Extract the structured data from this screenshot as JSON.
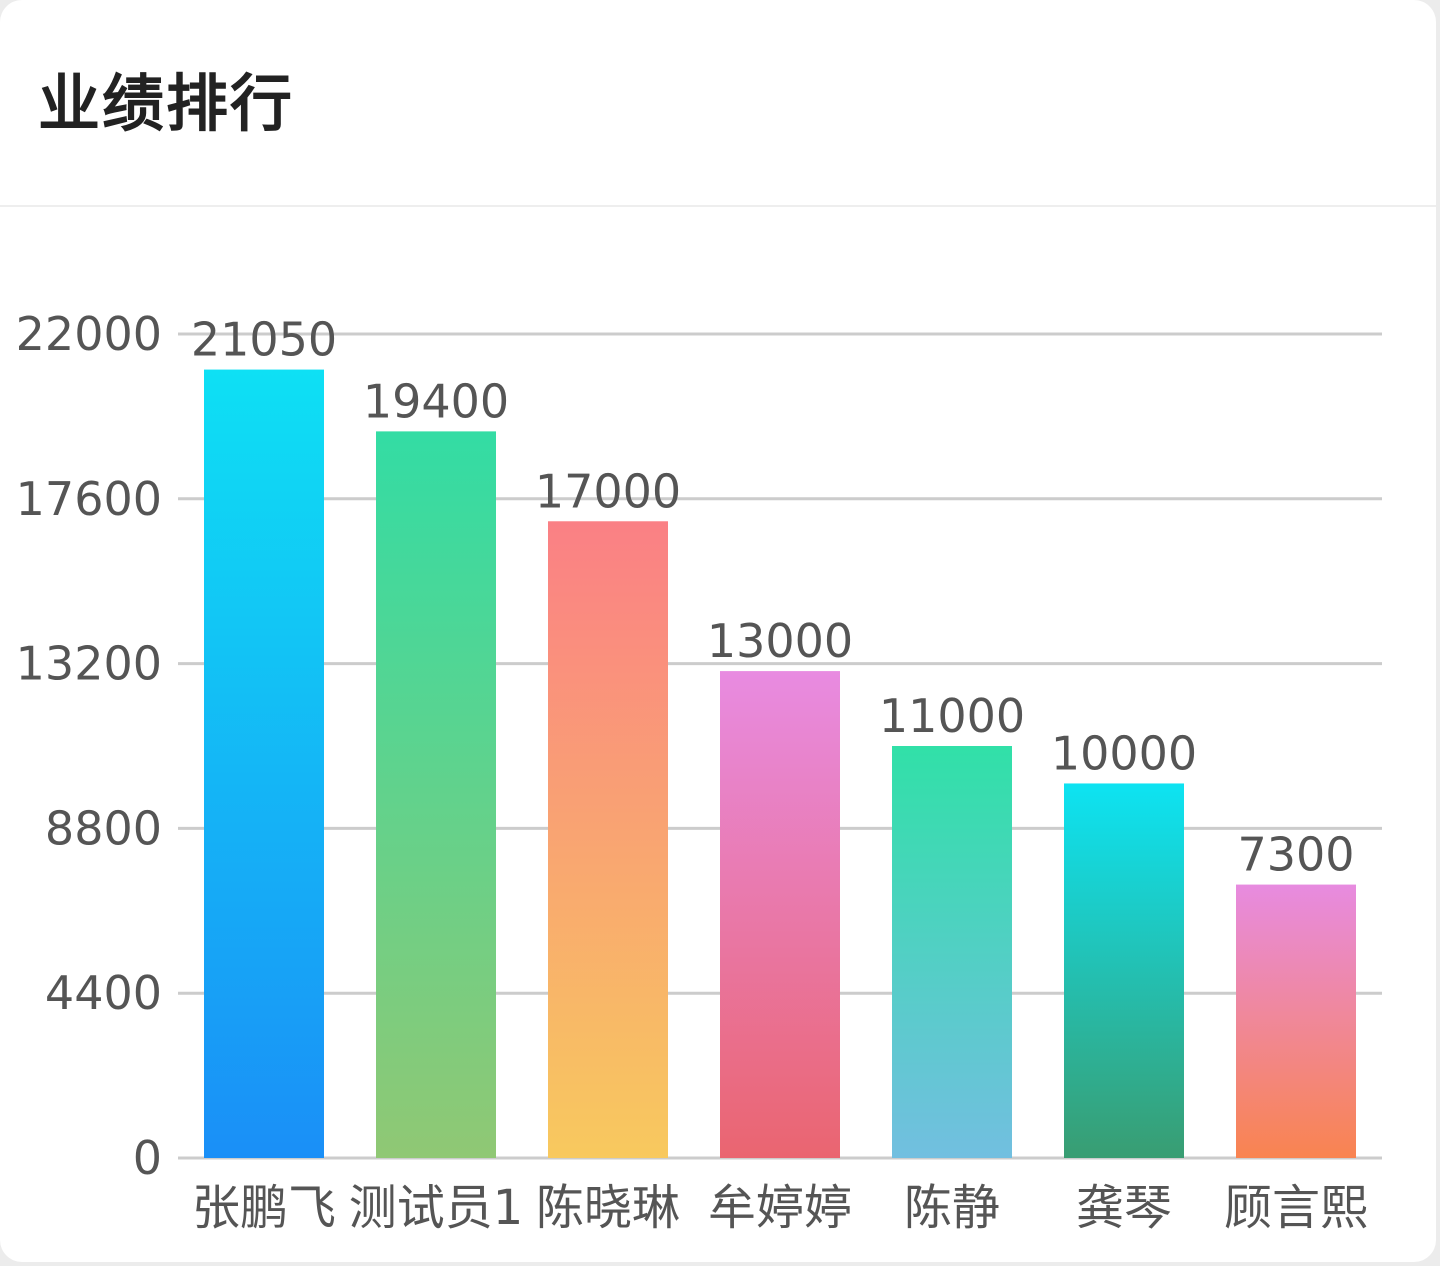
{
  "card": {
    "title": "业绩排行"
  },
  "chart_data": {
    "type": "bar",
    "title": "业绩排行",
    "xlabel": "",
    "ylabel": "",
    "categories": [
      "张鹏飞",
      "测试员1",
      "陈晓琳",
      "牟婷婷",
      "陈静",
      "龚琴",
      "顾言熙"
    ],
    "values": [
      21050,
      19400,
      17000,
      13000,
      11000,
      10000,
      7300
    ],
    "ylim": [
      0,
      22000
    ],
    "yticks": [
      0,
      4400,
      8800,
      13200,
      17600,
      22000
    ],
    "grid": true,
    "legend": "none",
    "bar_gradients": [
      [
        "#0ee0f4",
        "#1a8ff7"
      ],
      [
        "#33dca4",
        "#90c874"
      ],
      [
        "#fa8085",
        "#f8c95e"
      ],
      [
        "#e88be1",
        "#ea6570"
      ],
      [
        "#31e0a8",
        "#72bfe0"
      ],
      [
        "#0de3f2",
        "#399d72"
      ],
      [
        "#e78be0",
        "#f98450"
      ]
    ],
    "colors": {
      "grid": "#cccccc",
      "axis": "#cccccc",
      "text": "#555555"
    }
  }
}
